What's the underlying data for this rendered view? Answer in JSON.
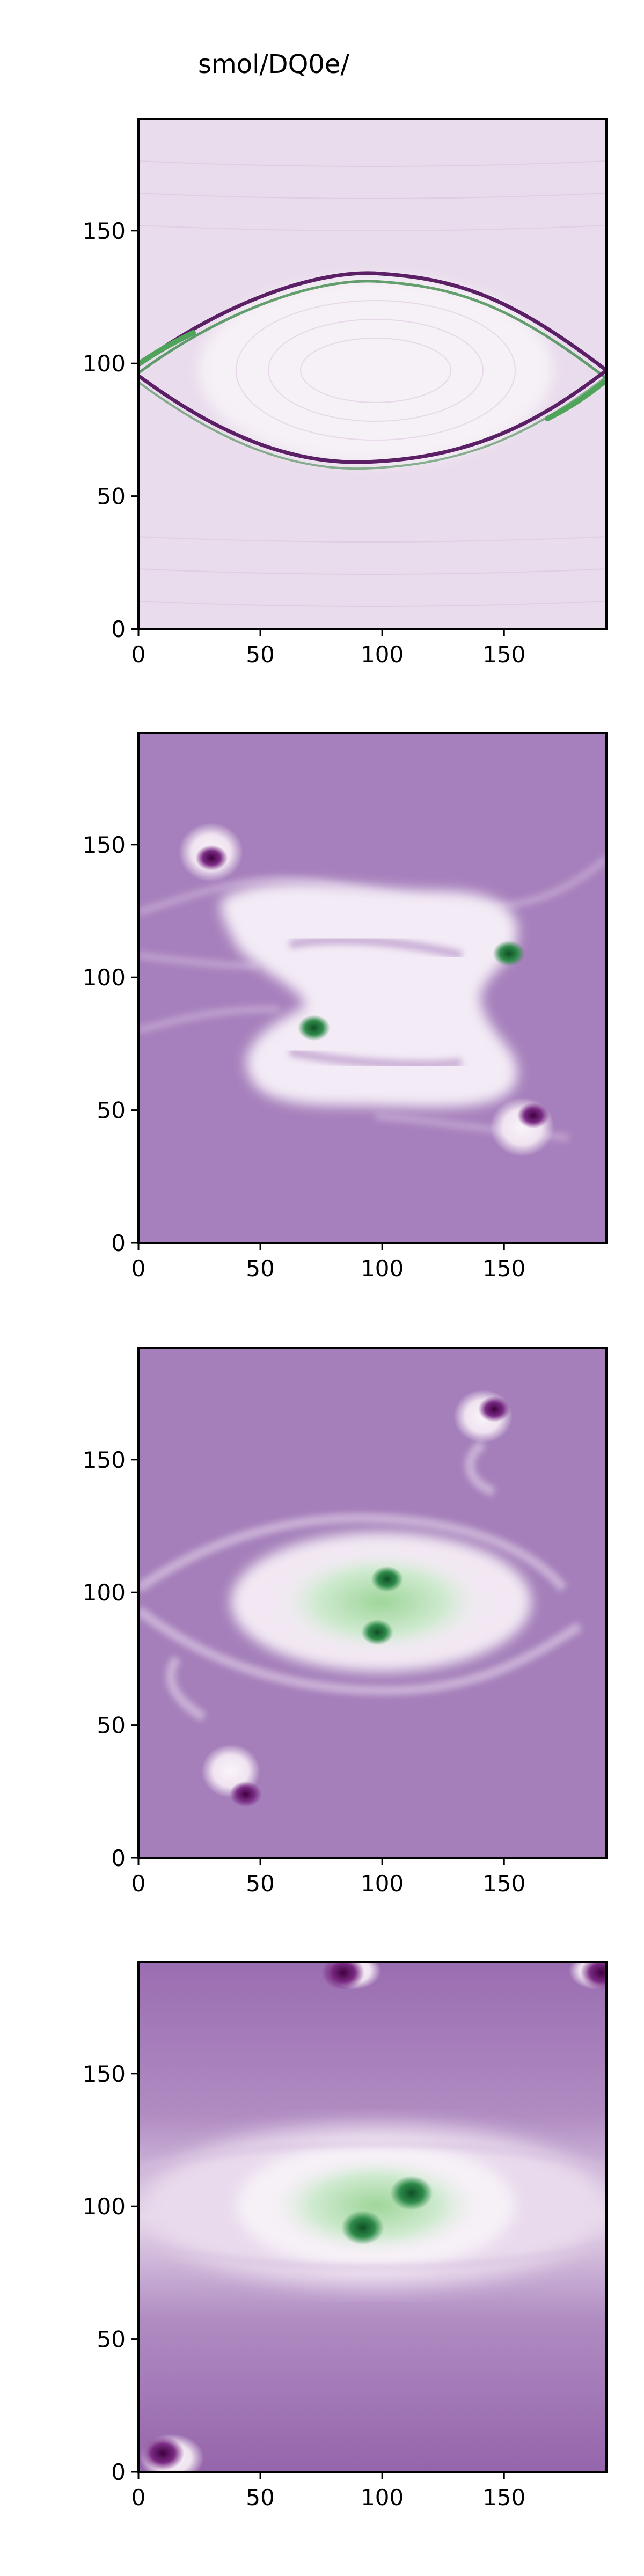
{
  "title": "smol/DQ0e/",
  "colormap": {
    "name": "PRGn",
    "background_purple": "#a47fba",
    "deep_purple": "#6a1f74",
    "white": "#f7f3f7",
    "light_green": "#c6e8c0",
    "deep_green": "#1e6b34"
  },
  "chart_data": [
    {
      "type": "heatmap",
      "title": "",
      "xlabel": "",
      "ylabel": "",
      "xlim": [
        0,
        192
      ],
      "ylim": [
        0,
        192
      ],
      "xticks": [
        "0",
        "50",
        "100",
        "150"
      ],
      "yticks": [
        "0",
        "50",
        "100",
        "150"
      ],
      "features": [
        {
          "kind": "vortex",
          "x": 96,
          "y": 98,
          "sign": "interface"
        }
      ]
    },
    {
      "type": "heatmap",
      "title": "",
      "xlabel": "",
      "ylabel": "",
      "xlim": [
        0,
        192
      ],
      "ylim": [
        0,
        192
      ],
      "xticks": [
        "0",
        "50",
        "100",
        "150"
      ],
      "yticks": [
        "0",
        "50",
        "100",
        "150"
      ],
      "features": [
        {
          "kind": "vortex",
          "x": 30,
          "y": 145,
          "sign": "negative"
        },
        {
          "kind": "vortex",
          "x": 72,
          "y": 81,
          "sign": "positive"
        },
        {
          "kind": "vortex",
          "x": 152,
          "y": 109,
          "sign": "positive"
        },
        {
          "kind": "vortex",
          "x": 162,
          "y": 48,
          "sign": "negative"
        }
      ]
    },
    {
      "type": "heatmap",
      "title": "",
      "xlabel": "",
      "ylabel": "",
      "xlim": [
        0,
        192
      ],
      "ylim": [
        0,
        192
      ],
      "xticks": [
        "0",
        "50",
        "100",
        "150"
      ],
      "yticks": [
        "0",
        "50",
        "100",
        "150"
      ],
      "features": [
        {
          "kind": "vortex",
          "x": 102,
          "y": 105,
          "sign": "positive"
        },
        {
          "kind": "vortex",
          "x": 98,
          "y": 85,
          "sign": "positive"
        },
        {
          "kind": "vortex",
          "x": 146,
          "y": 169,
          "sign": "negative"
        },
        {
          "kind": "vortex",
          "x": 44,
          "y": 24,
          "sign": "negative"
        }
      ]
    },
    {
      "type": "heatmap",
      "title": "",
      "xlabel": "",
      "ylabel": "",
      "xlim": [
        0,
        192
      ],
      "ylim": [
        0,
        192
      ],
      "xticks": [
        "0",
        "50",
        "100",
        "150"
      ],
      "yticks": [
        "0",
        "50",
        "100",
        "150"
      ],
      "features": [
        {
          "kind": "vortex",
          "x": 112,
          "y": 105,
          "sign": "positive"
        },
        {
          "kind": "vortex",
          "x": 92,
          "y": 92,
          "sign": "positive"
        },
        {
          "kind": "vortex",
          "x": 10,
          "y": 7,
          "sign": "negative"
        },
        {
          "kind": "vortex",
          "x": 84,
          "y": 188,
          "sign": "negative"
        },
        {
          "kind": "vortex",
          "x": 190,
          "y": 188,
          "sign": "negative"
        }
      ]
    }
  ]
}
